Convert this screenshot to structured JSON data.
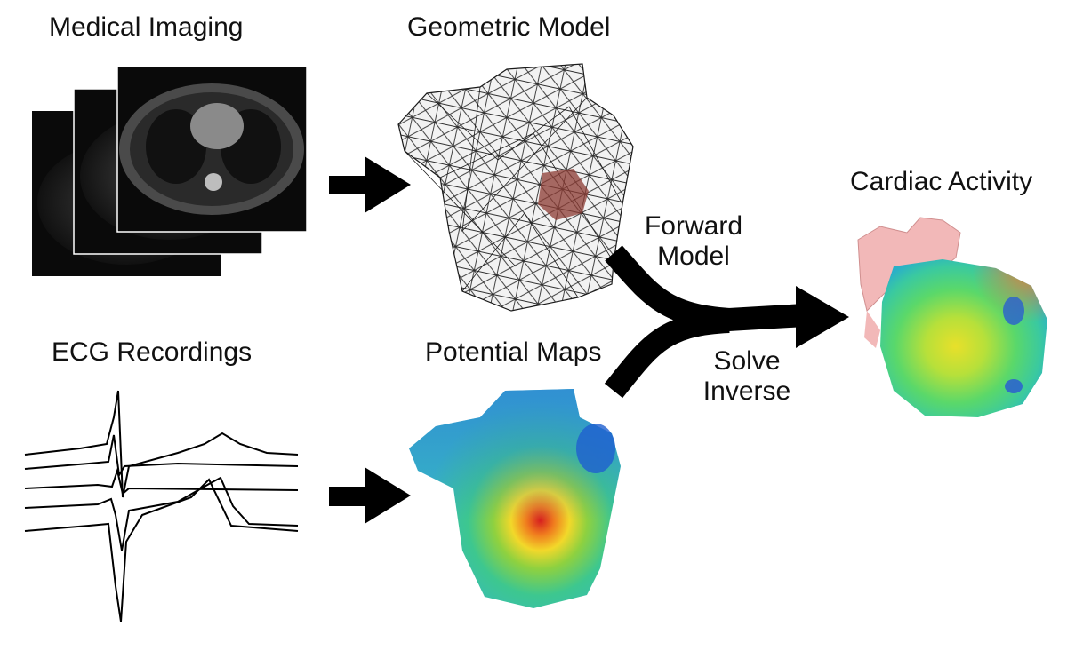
{
  "labels": {
    "medical_imaging": "Medical Imaging",
    "geometric_model": "Geometric Model",
    "cardiac_activity": "Cardiac Activity",
    "forward_line1": "Forward",
    "forward_line2": "Model",
    "ecg_recordings": "ECG Recordings",
    "potential_maps": "Potential Maps",
    "solve_line1": "Solve",
    "solve_line2": "Inverse"
  },
  "colors": {
    "arrow": "#000000",
    "heart_mesh": "#8b3a32",
    "atria": "#f2b8b8",
    "scan_bg": "#0a0a0a"
  },
  "icons": {
    "ct-stack": "stack of three CT slices",
    "torso-mesh": "wireframe torso with heart",
    "ecg-traces": "five ECG waveforms",
    "torso-potential": "colored torso surface map",
    "heart-activity": "colored heart surface with atria"
  }
}
